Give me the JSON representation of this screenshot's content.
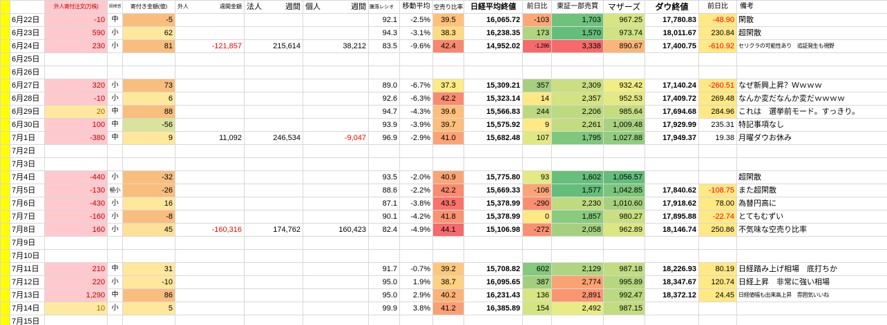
{
  "colors": {
    "left_strip": "#FFFF00",
    "header_pink": "#FFC9CE",
    "header_red": "#C00000",
    "grid": "#D8D8D8",
    "yellow_fill": "#FFE984",
    "scale_red": "#F8696B",
    "scale_yellow": "#FFEB84",
    "scale_green": "#63BE7B"
  },
  "header": {
    "foreign_open": "外人寄付注文(万株)",
    "scale": "規模感",
    "open_amount": "寄付き金額(億)",
    "foreign_week_main": "外人",
    "foreign_week_sub": "週間金額",
    "corp_week_main": "法人",
    "corp_week_sub": "週間",
    "indiv_week_main": "個人",
    "indiv_week_sub": "週間",
    "updown_ratio": "騰落レシオ",
    "moving_avg": "移動平均",
    "short_ratio": "空売り比率",
    "nikkei_close": "日経平均終値",
    "nikkei_chg": "前日比",
    "tse_value": "東証一部売買",
    "mothers": "マザーズ",
    "dow_close": "ダウ終値",
    "dow_chg": "前日比",
    "remark": "備考"
  },
  "rows": [
    {
      "date": "6月22日",
      "foreign_open": {
        "v": "-10",
        "bg": "#FFC9CE",
        "fg": "#C00000"
      },
      "scale": "中",
      "open_amt": {
        "v": "-5",
        "bg": "#F9BE7D"
      },
      "updown_ratio": "92.1",
      "moving_avg": "-2.5%",
      "short_ratio": {
        "v": "39.5",
        "bg": "#FDC17C"
      },
      "nikkei_close": "16,065.72",
      "nikkei_chg": {
        "v": "-103",
        "bg": "#FCA777"
      },
      "tse_value": {
        "v": "1,703",
        "bg": "#6EC27C"
      },
      "mothers": {
        "v": "967.25",
        "bg": "#D7E582"
      },
      "dow_close": "17,780.83",
      "dow_chg": {
        "v": "-48.90",
        "bg": "#FFE984",
        "fg": "#FF0000"
      },
      "remark": "閑散"
    },
    {
      "date": "6月23日",
      "foreign_open": {
        "v": "590",
        "bg": "#FFC9CE",
        "fg": "#C00000"
      },
      "scale": "小",
      "open_amt": {
        "v": "62",
        "bg": "#FFE79C"
      },
      "updown_ratio": "94.3",
      "moving_avg": "-3.1%",
      "short_ratio": {
        "v": "38.3",
        "bg": "#FEDA81"
      },
      "nikkei_close": "16,238.35",
      "nikkei_chg": {
        "v": "173",
        "bg": "#B0D57F"
      },
      "tse_value": {
        "v": "1,570",
        "bg": "#63BE7B"
      },
      "mothers": {
        "v": "973.74",
        "bg": "#D0E381"
      },
      "dow_close": "18,011.67",
      "dow_chg": {
        "v": "230.84",
        "bg": "#FFE984"
      },
      "remark": "超閑散"
    },
    {
      "date": "6月24日",
      "foreign_open": {
        "v": "230",
        "bg": "#FFC9CE",
        "fg": "#C00000"
      },
      "scale": "小",
      "open_amt": {
        "v": "81",
        "bg": "#F9BE7D"
      },
      "foreign_wk": {
        "v": "-121,857",
        "fg": "#FF0000"
      },
      "corp_wk": "215,614",
      "indiv_wk": "38,212",
      "updown_ratio": "83.5",
      "moving_avg": "-9.6%",
      "short_ratio": {
        "v": "42.4",
        "bg": "#F9876E"
      },
      "nikkei_close": "14,952.02",
      "nikkei_chg": {
        "v": "-1,286",
        "bg": "#F8696B",
        "small": true
      },
      "tse_value": {
        "v": "3,338",
        "bg": "#F8696B"
      },
      "mothers": {
        "v": "890.67",
        "bg": "#FCB578"
      },
      "dow_close": "17,400.75",
      "dow_chg": {
        "v": "-610.92",
        "bg": "#FFE984",
        "fg": "#FF0000"
      },
      "remark": {
        "v": "セリクラの可能性あり　追証発生も視野",
        "small": true
      }
    },
    {
      "date": "6月25日"
    },
    {
      "date": "6月26日"
    },
    {
      "date": "6月27日",
      "foreign_open": {
        "v": "320",
        "bg": "#FFC9CE",
        "fg": "#C00000"
      },
      "scale": "小",
      "open_amt": {
        "v": "73",
        "bg": "#F9BE7D"
      },
      "updown_ratio": "89.0",
      "moving_avg": "-6.7%",
      "short_ratio": {
        "v": "37.3",
        "bg": "#FFEB84"
      },
      "nikkei_close": "15,309.21",
      "nikkei_chg": {
        "v": "357",
        "bg": "#A6D07F"
      },
      "tse_value": {
        "v": "2,309",
        "bg": "#C9DF81"
      },
      "mothers": {
        "v": "932.42",
        "bg": "#F3EE84"
      },
      "dow_close": "17,140.24",
      "dow_chg": {
        "v": "-260.51",
        "bg": "#FFE984",
        "fg": "#FF0000"
      },
      "remark": "なぜ新興上昇？Ｗｗｗｗ"
    },
    {
      "date": "6月28日",
      "foreign_open": {
        "v": "-10",
        "bg": "#FFC9CE",
        "fg": "#C00000"
      },
      "scale": "小",
      "open_amt": {
        "v": "6",
        "bg": "#FFE79C"
      },
      "updown_ratio": "92.6",
      "moving_avg": "-6.3%",
      "short_ratio": {
        "v": "42.2",
        "bg": "#FA8B6F"
      },
      "nikkei_close": "15,323.14",
      "nikkei_chg": {
        "v": "14",
        "bg": "#FFE884"
      },
      "tse_value": {
        "v": "2,357",
        "bg": "#D2E381"
      },
      "mothers": {
        "v": "952.53",
        "bg": "#E4EA83"
      },
      "dow_close": "17,409.72",
      "dow_chg": {
        "v": "269.48",
        "bg": "#FFE984"
      },
      "remark": "なんか変だなんか変だｗｗｗｗ"
    },
    {
      "date": "6月29日",
      "foreign_open": {
        "v": "20",
        "bg": "#FFE9A0",
        "fg": "#9C6500"
      },
      "scale": "中",
      "open_amt": {
        "v": "88",
        "bg": "#F9BE7D"
      },
      "updown_ratio": "94.7",
      "moving_avg": "-4.3%",
      "short_ratio": {
        "v": "39.6",
        "bg": "#FDBF7B"
      },
      "nikkei_close": "15,566.83",
      "nikkei_chg": {
        "v": "244",
        "bg": "#BBDA80"
      },
      "tse_value": {
        "v": "2,206",
        "bg": "#BCDA80"
      },
      "mothers": {
        "v": "985.64",
        "bg": "#C4DD80"
      },
      "dow_close": "17,694.68",
      "dow_chg": {
        "v": "284.96",
        "bg": "#FFE984"
      },
      "remark": "これは　選挙前モード。すっきり。"
    },
    {
      "date": "6月30日",
      "foreign_open": {
        "v": "100",
        "bg": "#FFC9CE",
        "fg": "#C00000"
      },
      "scale": "中",
      "open_amt": {
        "v": "-56",
        "bg": "#D9E39B"
      },
      "updown_ratio": "93.9",
      "moving_avg": "-3.9%",
      "short_ratio": {
        "v": "39.7",
        "bg": "#FDBD7B"
      },
      "nikkei_close": "15,575.92",
      "nikkei_chg": {
        "v": "9",
        "bg": "#FFE984"
      },
      "tse_value": {
        "v": "2,261",
        "bg": "#C3DC80"
      },
      "mothers": {
        "v": "1,009.48",
        "bg": "#A7D27F"
      },
      "dow_close": "17,929.99",
      "dow_chg": {
        "v": "235.31"
      },
      "remark": "特記事項なし"
    },
    {
      "date": "7月1日",
      "foreign_open": {
        "v": "-380",
        "bg": "#FFC9CE",
        "fg": "#C00000"
      },
      "scale": "中",
      "open_amt": {
        "v": "9",
        "bg": "#FFE79C"
      },
      "foreign_wk": "11,092",
      "corp_wk": "246,534",
      "indiv_wk": {
        "v": "-9,047",
        "fg": "#FF0000"
      },
      "updown_ratio": "96.9",
      "moving_avg": "-2.9%",
      "short_ratio": {
        "v": "41.0",
        "bg": "#FBA375"
      },
      "nikkei_close": "15,682.48",
      "nikkei_chg": {
        "v": "107",
        "bg": "#E0E883"
      },
      "tse_value": {
        "v": "1,795",
        "bg": "#7FC77D"
      },
      "mothers": {
        "v": "1,027.88",
        "bg": "#92CC7E"
      },
      "dow_close": "17,949.37",
      "dow_chg": {
        "v": "19.38"
      },
      "remark": "月曜ダウお休み"
    },
    {
      "date": "7月2日"
    },
    {
      "date": "7月3日"
    },
    {
      "date": "7月4日",
      "foreign_open": {
        "v": "-440",
        "bg": "#FFC9CE",
        "fg": "#C00000"
      },
      "scale": "小",
      "open_amt": {
        "v": "-32",
        "bg": "#F9BE7D"
      },
      "updown_ratio": "93.5",
      "moving_avg": "-2.0%",
      "short_ratio": {
        "v": "40.9",
        "bg": "#FBA576"
      },
      "nikkei_close": "15,775.80",
      "nikkei_chg": {
        "v": "93",
        "bg": "#E4EA83"
      },
      "tse_value": {
        "v": "1,602",
        "bg": "#66BF7B"
      },
      "mothers": {
        "v": "1,056.57",
        "bg": "#63BE7B"
      },
      "remark": "超閑散"
    },
    {
      "date": "7月5日",
      "foreign_open": {
        "v": "-130",
        "bg": "#FFC9CE",
        "fg": "#C00000"
      },
      "scale": {
        "v": "極小",
        "small": true
      },
      "open_amt": {
        "v": "-26",
        "bg": "#F9BE7D"
      },
      "updown_ratio": "88.6",
      "moving_avg": "-2.2%",
      "short_ratio": {
        "v": "42.2",
        "bg": "#FA8B6F"
      },
      "nikkei_close": "15,669.33",
      "nikkei_chg": {
        "v": "-106",
        "bg": "#FBA475"
      },
      "tse_value": {
        "v": "1,577",
        "bg": "#63BE7B"
      },
      "mothers": {
        "v": "1,042.85",
        "bg": "#7CC67C"
      },
      "dow_close": "17,840.62",
      "dow_chg": {
        "v": "-108.75",
        "bg": "#FFE984",
        "fg": "#FF0000"
      },
      "remark": "また超閑散"
    },
    {
      "date": "7月6日",
      "foreign_open": {
        "v": "-430",
        "bg": "#FFC9CE",
        "fg": "#C00000"
      },
      "scale": "小",
      "open_amt": {
        "v": "16",
        "bg": "#FFE79C"
      },
      "updown_ratio": "87.1",
      "moving_avg": "-3.8%",
      "short_ratio": {
        "v": "43.5",
        "bg": "#F8736C"
      },
      "nikkei_close": "15,378.99",
      "nikkei_chg": {
        "v": "-290",
        "bg": "#FA8E70"
      },
      "tse_value": {
        "v": "2,230",
        "bg": "#BEDB80"
      },
      "mothers": {
        "v": "1,010.60",
        "bg": "#A6D17F"
      },
      "dow_close": "17,918.62",
      "dow_chg": {
        "v": "78.00",
        "bg": "#FFE984"
      },
      "remark": "為替円高に"
    },
    {
      "date": "7月7日",
      "foreign_open": {
        "v": "-160",
        "bg": "#FFC9CE",
        "fg": "#C00000"
      },
      "scale": "小",
      "open_amt": {
        "v": "-8",
        "bg": "#F9BE7D"
      },
      "updown_ratio": "90.1",
      "moving_avg": "-4.2%",
      "short_ratio": {
        "v": "41.8",
        "bg": "#FA9371"
      },
      "nikkei_close": "15,378.99",
      "nikkei_chg": {
        "v": "0",
        "bg": "#FEE883"
      },
      "tse_value": {
        "v": "1,857",
        "bg": "#88CA7E"
      },
      "mothers": {
        "v": "980.27",
        "bg": "#C9DF81"
      },
      "dow_close": "17,895.88",
      "dow_chg": {
        "v": "-22.74",
        "bg": "#FFE984",
        "fg": "#FF0000"
      },
      "remark": "とてもむずい"
    },
    {
      "date": "7月8日",
      "foreign_open": {
        "v": "160",
        "bg": "#FFC9CE",
        "fg": "#C00000"
      },
      "scale": "小",
      "open_amt": {
        "v": "45",
        "bg": "#FFE097"
      },
      "foreign_wk": {
        "v": "-160,316",
        "fg": "#FF0000"
      },
      "corp_wk": "174,762",
      "indiv_wk": "160,423",
      "updown_ratio": "82.4",
      "moving_avg": "-4.9%",
      "short_ratio": {
        "v": "44.1",
        "bg": "#F8696B"
      },
      "nikkei_close": "15,106.98",
      "nikkei_chg": {
        "v": "-272",
        "bg": "#FA9071"
      },
      "tse_value": {
        "v": "2,058",
        "bg": "#A5D17F"
      },
      "mothers": {
        "v": "962.89",
        "bg": "#DCE782"
      },
      "dow_close": "18,146.74",
      "dow_chg": {
        "v": "250.86",
        "bg": "#FFE984"
      },
      "remark": "不気味な空売り比率"
    },
    {
      "date": "7月9日"
    },
    {
      "date": "7月10日"
    },
    {
      "date": "7月11日",
      "foreign_open": {
        "v": "210",
        "bg": "#FFC9CE",
        "fg": "#C00000"
      },
      "scale": "中",
      "open_amt": {
        "v": "31",
        "bg": "#FFE79C"
      },
      "updown_ratio": "91.7",
      "moving_avg": "-0.7%",
      "short_ratio": {
        "v": "39.2",
        "bg": "#FDC87D"
      },
      "nikkei_close": "15,708.82",
      "nikkei_chg": {
        "v": "602",
        "bg": "#84C97D"
      },
      "tse_value": {
        "v": "2,129",
        "bg": "#B0D580"
      },
      "mothers": {
        "v": "987.18",
        "bg": "#C2DC80"
      },
      "dow_close": "18,226.93",
      "dow_chg": {
        "v": "80.19",
        "bg": "#FFE984"
      },
      "remark": "日経踏み上げ相場　底打ちか"
    },
    {
      "date": "7月12日",
      "foreign_open": {
        "v": "220",
        "bg": "#FFC9CE",
        "fg": "#C00000"
      },
      "scale": "小",
      "open_amt": {
        "v": "-10",
        "bg": "#FFE79C"
      },
      "updown_ratio": "95.0",
      "moving_avg": "1.9%",
      "short_ratio": {
        "v": "38.7",
        "bg": "#FED280"
      },
      "nikkei_close": "16,095.65",
      "nikkei_chg": {
        "v": "387",
        "bg": "#A2CF7F"
      },
      "tse_value": {
        "v": "2,774",
        "bg": "#FBA274"
      },
      "mothers": {
        "v": "995.89",
        "bg": "#B6D780"
      },
      "dow_close": "18,347.67",
      "dow_chg": {
        "v": "120.74",
        "bg": "#FFE984"
      },
      "remark": "日経上昇　非常に強い相場"
    },
    {
      "date": "7月13日",
      "foreign_open": {
        "v": "1,290",
        "bg": "#FFC9CE",
        "fg": "#C00000"
      },
      "scale": "中",
      "open_amt": {
        "v": "86",
        "bg": "#F9BE7D"
      },
      "updown_ratio": "95.0",
      "moving_avg": "2.9%",
      "short_ratio": {
        "v": "40.2",
        "bg": "#FCB378"
      },
      "nikkei_close": "16,231.43",
      "nikkei_chg": {
        "v": "136",
        "bg": "#D8E682"
      },
      "tse_value": {
        "v": "2,891",
        "bg": "#FA9572"
      },
      "mothers": {
        "v": "992.47",
        "bg": "#BAD980"
      },
      "dow_close": "18,372.12",
      "dow_chg": {
        "v": "24.45",
        "bg": "#FFE984"
      },
      "remark": {
        "v": "日経値幅も出来高上昇　雰囲気いいね",
        "small": true
      }
    },
    {
      "date": "7月14日",
      "foreign_open": {
        "v": "10",
        "bg": "#FFE9A0",
        "fg": "#9C6500"
      },
      "scale": "小",
      "open_amt": {
        "v": "5",
        "bg": "#FFE79C"
      },
      "updown_ratio": "99.9",
      "moving_avg": "3.8%",
      "short_ratio": {
        "v": "41.2",
        "bg": "#FB9F74"
      },
      "nikkei_close": "16,385.89",
      "nikkei_chg": {
        "v": "154",
        "bg": "#D3E581"
      },
      "tse_value": {
        "v": "2,492",
        "bg": "#E8EC83"
      },
      "mothers": {
        "v": "987.15",
        "bg": "#C2DC80"
      }
    },
    {
      "date": "7月15日"
    }
  ]
}
